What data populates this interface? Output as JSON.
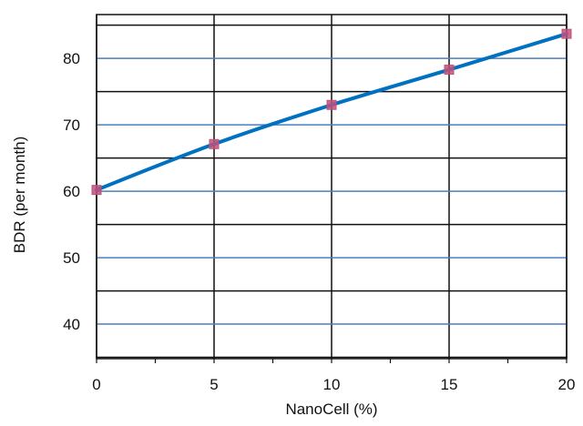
{
  "chart_data": {
    "type": "line",
    "title": "",
    "xlabel": "NanoCell (%)",
    "ylabel": "BDR (per month)",
    "x": [
      0,
      5,
      10,
      15,
      20
    ],
    "series": [
      {
        "values": [
          60.2,
          67.1,
          73.0,
          78.3,
          83.7
        ],
        "color": "#0070c0",
        "marker_color": "#c0507a"
      }
    ],
    "xlim": [
      0,
      20
    ],
    "ylim": [
      34.8,
      86.6
    ],
    "x_ticks": [
      0,
      5,
      10,
      15,
      20
    ],
    "x_tick_labels": [
      "0",
      "5",
      "10",
      "15",
      "20"
    ],
    "y_ticks": [
      40,
      50,
      60,
      70,
      80
    ],
    "y_tick_labels": [
      "40",
      "50",
      "60",
      "70",
      "80"
    ],
    "grid": true,
    "legend": "none",
    "colors": {
      "major_grid": "#4a7fc1",
      "minor_grid": "#111111",
      "frame": "#111111"
    }
  }
}
